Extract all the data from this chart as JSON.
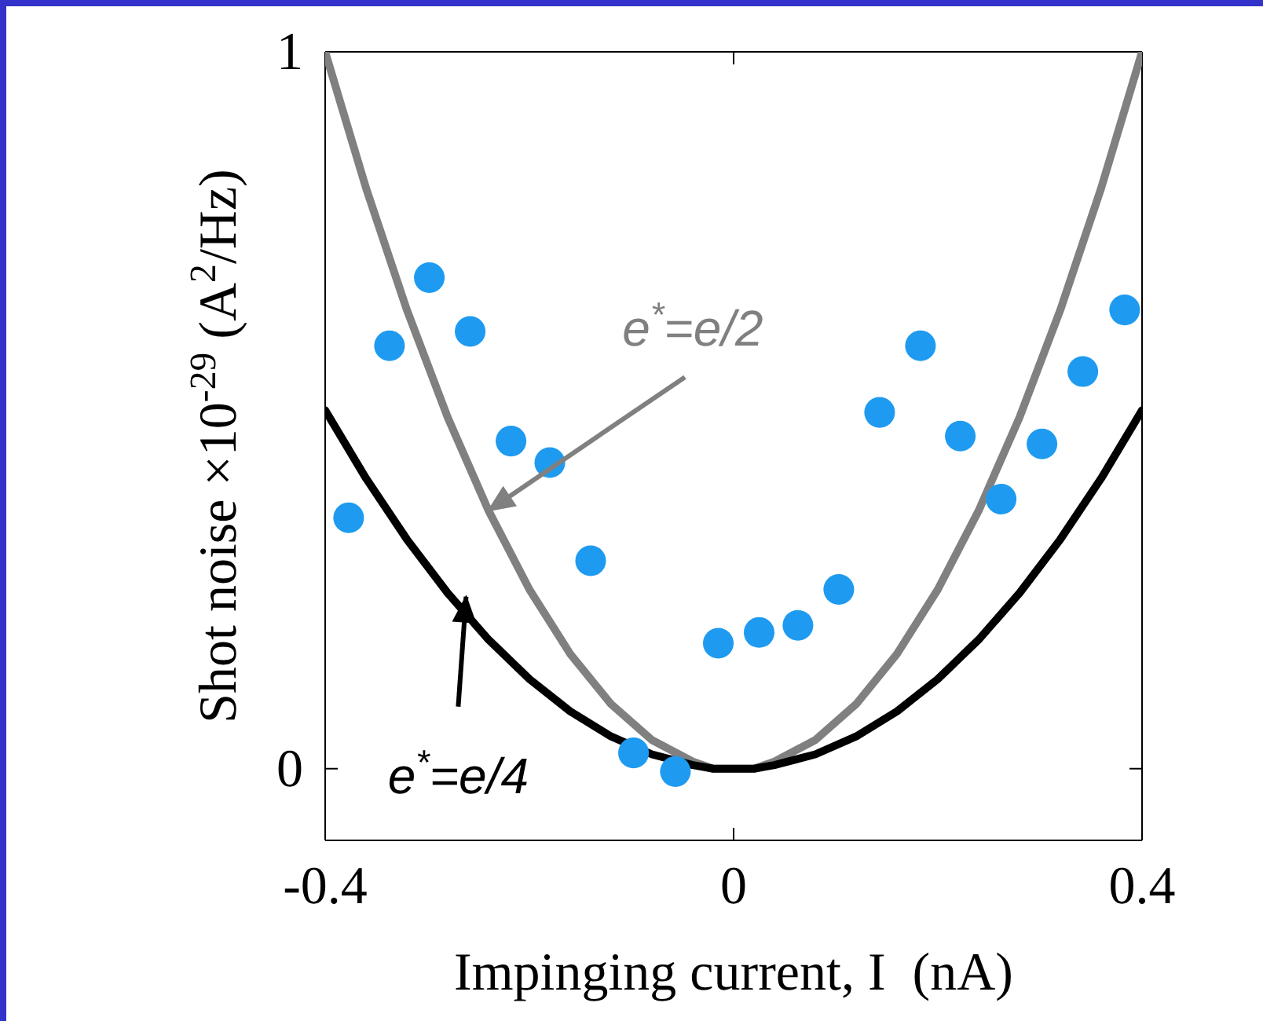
{
  "chart_data": {
    "type": "line",
    "xlabel": "Impinging current, I  (nA)",
    "ylabel": "Shot noise ×10$^{-29}$ (A$^{2}$/Hz)",
    "xlim": [
      -0.4,
      0.4
    ],
    "ylim": [
      -0.1,
      1
    ],
    "xticks": [
      -0.4,
      0,
      0.4
    ],
    "yticks": [
      0,
      1
    ],
    "grid": false,
    "series": [
      {
        "color": "#808080",
        "x": [
          -0.4,
          -0.36,
          -0.32,
          -0.28,
          -0.24,
          -0.2,
          -0.16,
          -0.12,
          -0.08,
          -0.04,
          -0.02,
          0,
          0.02,
          0.04,
          0.08,
          0.12,
          0.16,
          0.2,
          0.24,
          0.28,
          0.32,
          0.36,
          0.4
        ],
        "values": [
          1,
          0.81,
          0.64,
          0.49,
          0.36,
          0.25,
          0.16,
          0.09,
          0.04,
          0.01,
          0,
          0,
          0,
          0.01,
          0.04,
          0.09,
          0.16,
          0.25,
          0.36,
          0.49,
          0.64,
          0.81,
          1
        ]
      },
      {
        "color": "#000000",
        "x": [
          -0.4,
          -0.36,
          -0.32,
          -0.28,
          -0.24,
          -0.2,
          -0.16,
          -0.12,
          -0.08,
          -0.04,
          -0.02,
          0,
          0.02,
          0.04,
          0.08,
          0.12,
          0.16,
          0.2,
          0.24,
          0.28,
          0.32,
          0.36,
          0.4
        ],
        "values": [
          0.5,
          0.405,
          0.32,
          0.245,
          0.18,
          0.125,
          0.08,
          0.045,
          0.02,
          0.005,
          0,
          0,
          0,
          0.005,
          0.02,
          0.045,
          0.08,
          0.125,
          0.18,
          0.245,
          0.32,
          0.405,
          0.5
        ]
      },
      {
        "type": "scatter",
        "color": "#1e9bf0",
        "marker": "circle",
        "x": [
          -0.377,
          -0.337,
          -0.298,
          -0.258,
          -0.218,
          -0.18,
          -0.14,
          -0.098,
          -0.057,
          -0.015,
          0.025,
          0.063,
          0.103,
          0.143,
          0.183,
          0.222,
          0.262,
          0.302,
          0.342,
          0.383
        ],
        "values": [
          0.35,
          0.59,
          0.685,
          0.61,
          0.457,
          0.427,
          0.29,
          0.022,
          -0.004,
          0.175,
          0.19,
          0.2,
          0.25,
          0.497,
          0.59,
          0.464,
          0.376,
          0.453,
          0.554,
          0.64
        ]
      }
    ],
    "annotations": [
      {
        "text": "e$^{*}$=e/2",
        "x": -0.24,
        "y": 0.36
      },
      {
        "text": "e$^{*}$=e/4",
        "x": -0.262,
        "y": 0.24
      }
    ]
  }
}
